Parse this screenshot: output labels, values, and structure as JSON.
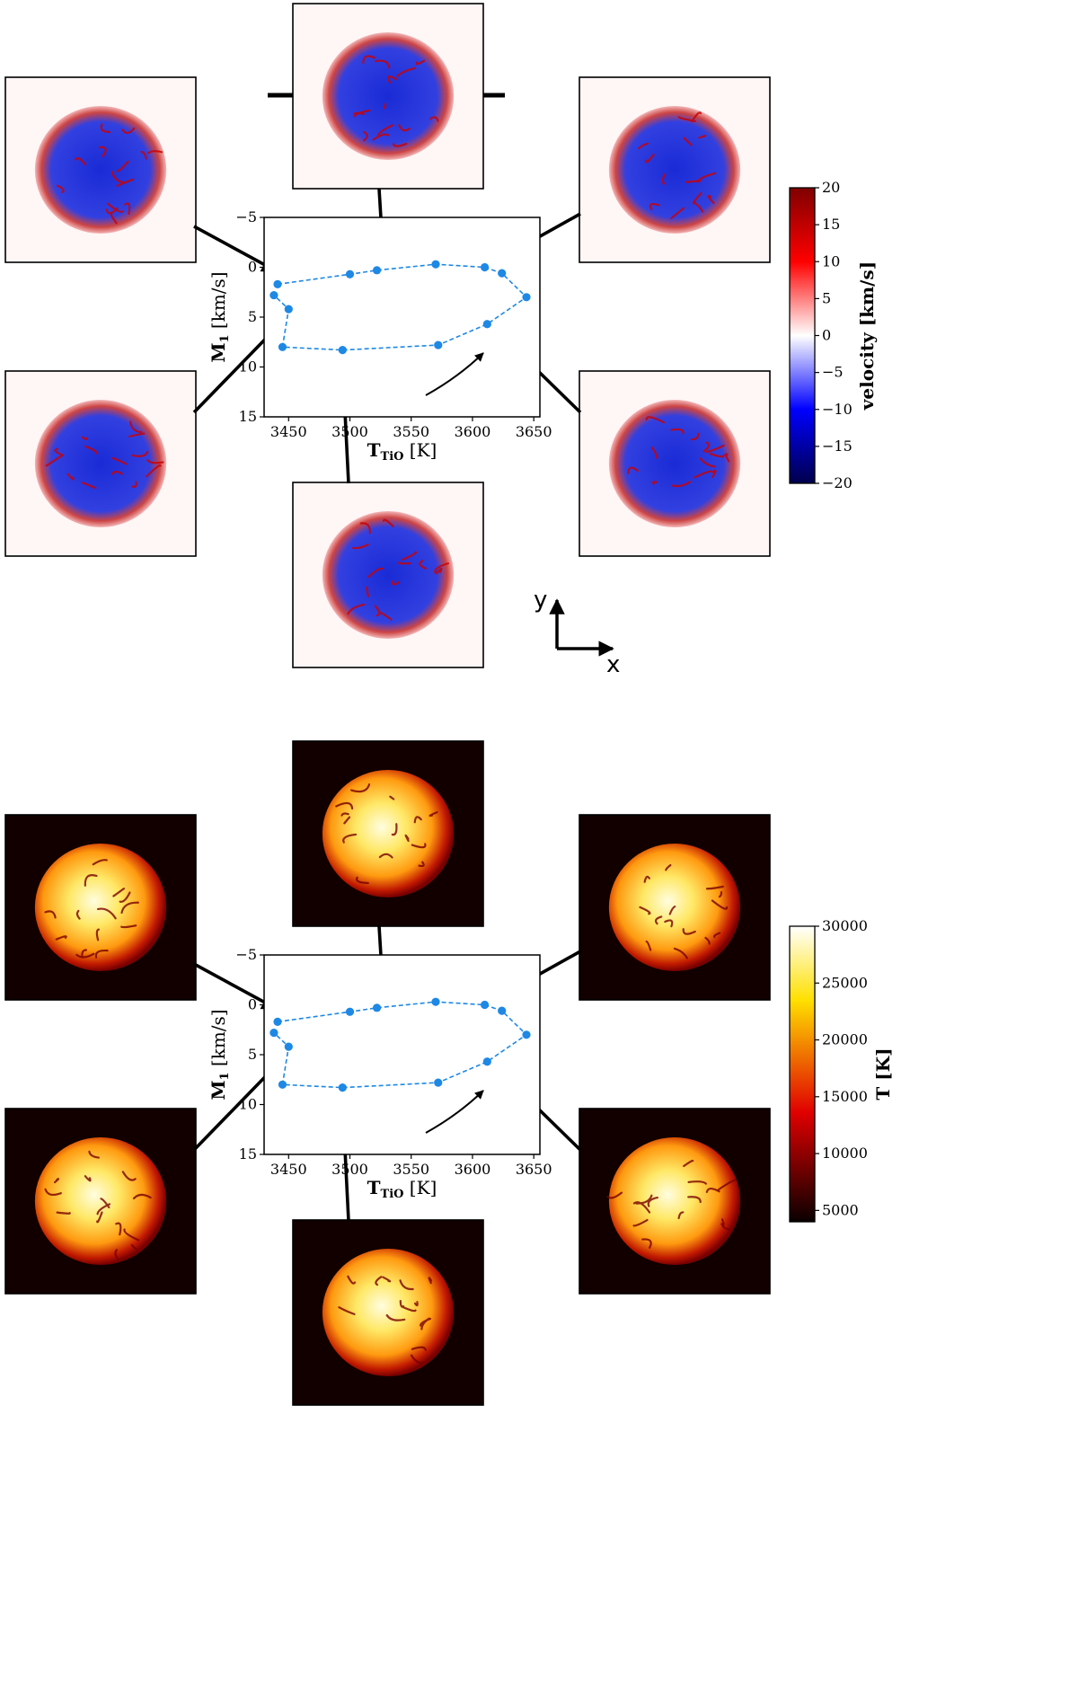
{
  "colors": {
    "series": "#1e88e5",
    "velocity_bg": "#fff6f6",
    "temperature_bg": "#120000",
    "arrow": "#000000"
  },
  "direction_axes": {
    "y_label": "y",
    "x_label": "x"
  },
  "colorbars": [
    {
      "name": "velocity",
      "label": "velocity [km/s]",
      "colormap": "seismic",
      "range": [
        -20,
        20
      ],
      "ticks": [
        "20",
        "15",
        "10",
        "5",
        "0",
        "−5",
        "−10",
        "−15",
        "−20"
      ]
    },
    {
      "name": "temperature",
      "label": "T [K]",
      "colormap": "hot",
      "range": [
        4000,
        30000
      ],
      "ticks": [
        "30000",
        "25000",
        "20000",
        "15000",
        "10000",
        "5000"
      ]
    }
  ],
  "chart_data": [
    {
      "type": "scatter",
      "panel": "velocity",
      "line_style": "dashed",
      "xlabel": "T_TiO [K]",
      "ylabel": "M_1 [km/s]",
      "xlabel_main": "T",
      "xlabel_sub": "TiO",
      "xlabel_unit": " [K]",
      "ylabel_main": "M",
      "ylabel_sub": "1",
      "ylabel_unit": " [km/s]",
      "xlim": [
        3430,
        3655
      ],
      "ylim": [
        15,
        -5
      ],
      "xticks": [
        3450,
        3500,
        3550,
        3600,
        3650
      ],
      "yticks": [
        -5,
        0,
        5,
        10,
        15
      ],
      "xtick_labels": [
        "3450",
        "3500",
        "3550",
        "3600",
        "3650"
      ],
      "ytick_labels": [
        "−5",
        "0",
        "5",
        "10",
        "15"
      ],
      "x": [
        3441,
        3500,
        3522,
        3570,
        3610,
        3624,
        3644,
        3612,
        3572,
        3494,
        3445,
        3450,
        3438
      ],
      "y": [
        1.7,
        0.7,
        0.3,
        -0.3,
        0.0,
        0.6,
        3.0,
        5.7,
        7.8,
        8.3,
        8.0,
        4.2,
        2.8
      ]
    },
    {
      "type": "scatter",
      "panel": "temperature",
      "line_style": "dashed",
      "xlabel": "T_TiO [K]",
      "ylabel": "M_1 [km/s]",
      "xlabel_main": "T",
      "xlabel_sub": "TiO",
      "xlabel_unit": " [K]",
      "ylabel_main": "M",
      "ylabel_sub": "1",
      "ylabel_unit": " [km/s]",
      "xlim": [
        3430,
        3655
      ],
      "ylim": [
        15,
        -5
      ],
      "xticks": [
        3450,
        3500,
        3550,
        3600,
        3650
      ],
      "yticks": [
        -5,
        0,
        5,
        10,
        15
      ],
      "xtick_labels": [
        "3450",
        "3500",
        "3550",
        "3600",
        "3650"
      ],
      "ytick_labels": [
        "−5",
        "0",
        "5",
        "10",
        "15"
      ],
      "x": [
        3441,
        3500,
        3522,
        3570,
        3610,
        3624,
        3644,
        3612,
        3572,
        3494,
        3445,
        3450,
        3438
      ],
      "y": [
        1.7,
        0.7,
        0.3,
        -0.3,
        0.0,
        0.6,
        3.0,
        5.7,
        7.8,
        8.3,
        8.0,
        4.2,
        2.8
      ]
    }
  ]
}
